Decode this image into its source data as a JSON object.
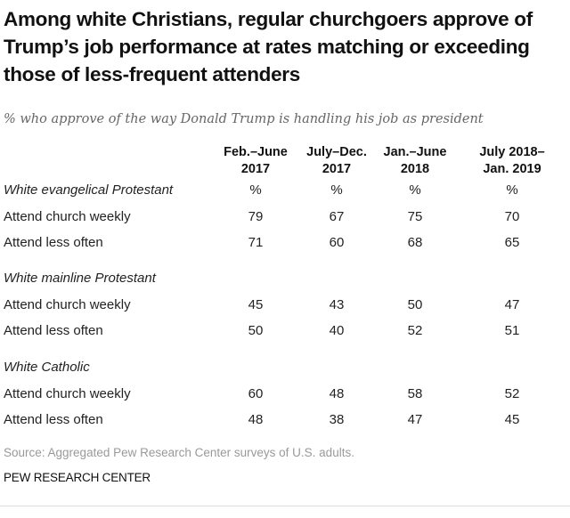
{
  "chart_data": {
    "type": "table",
    "title": "Among white Christians, regular churchgoers approve of Trump’s job performance at rates matching or exceeding those of less-frequent attenders",
    "subtitle": "% who approve of the way Donald Trump is handling his job as president",
    "columns": [
      {
        "line1": "Feb.–June",
        "line2": "2017"
      },
      {
        "line1": "July–Dec.",
        "line2": "2017"
      },
      {
        "line1": "Jan.–June",
        "line2": "2018"
      },
      {
        "line1": "July 2018–",
        "line2": "Jan. 2019"
      }
    ],
    "groups": [
      {
        "label": "White evangelical Protestant",
        "unit_row": [
          "%",
          "%",
          "%",
          "%"
        ],
        "rows": [
          {
            "label": "Attend church weekly",
            "values": [
              79,
              67,
              75,
              70
            ]
          },
          {
            "label": "Attend less often",
            "values": [
              71,
              60,
              68,
              65
            ]
          }
        ]
      },
      {
        "label": "White mainline Protestant",
        "unit_row": [],
        "rows": [
          {
            "label": "Attend church weekly",
            "values": [
              45,
              43,
              50,
              47
            ]
          },
          {
            "label": "Attend less often",
            "values": [
              50,
              40,
              52,
              51
            ]
          }
        ]
      },
      {
        "label": "White Catholic",
        "unit_row": [],
        "rows": [
          {
            "label": "Attend church weekly",
            "values": [
              60,
              48,
              58,
              52
            ]
          },
          {
            "label": "Attend less often",
            "values": [
              48,
              38,
              47,
              45
            ]
          }
        ]
      }
    ],
    "source": "Source: Aggregated Pew Research Center surveys of U.S. adults.",
    "organization": "PEW RESEARCH CENTER"
  }
}
